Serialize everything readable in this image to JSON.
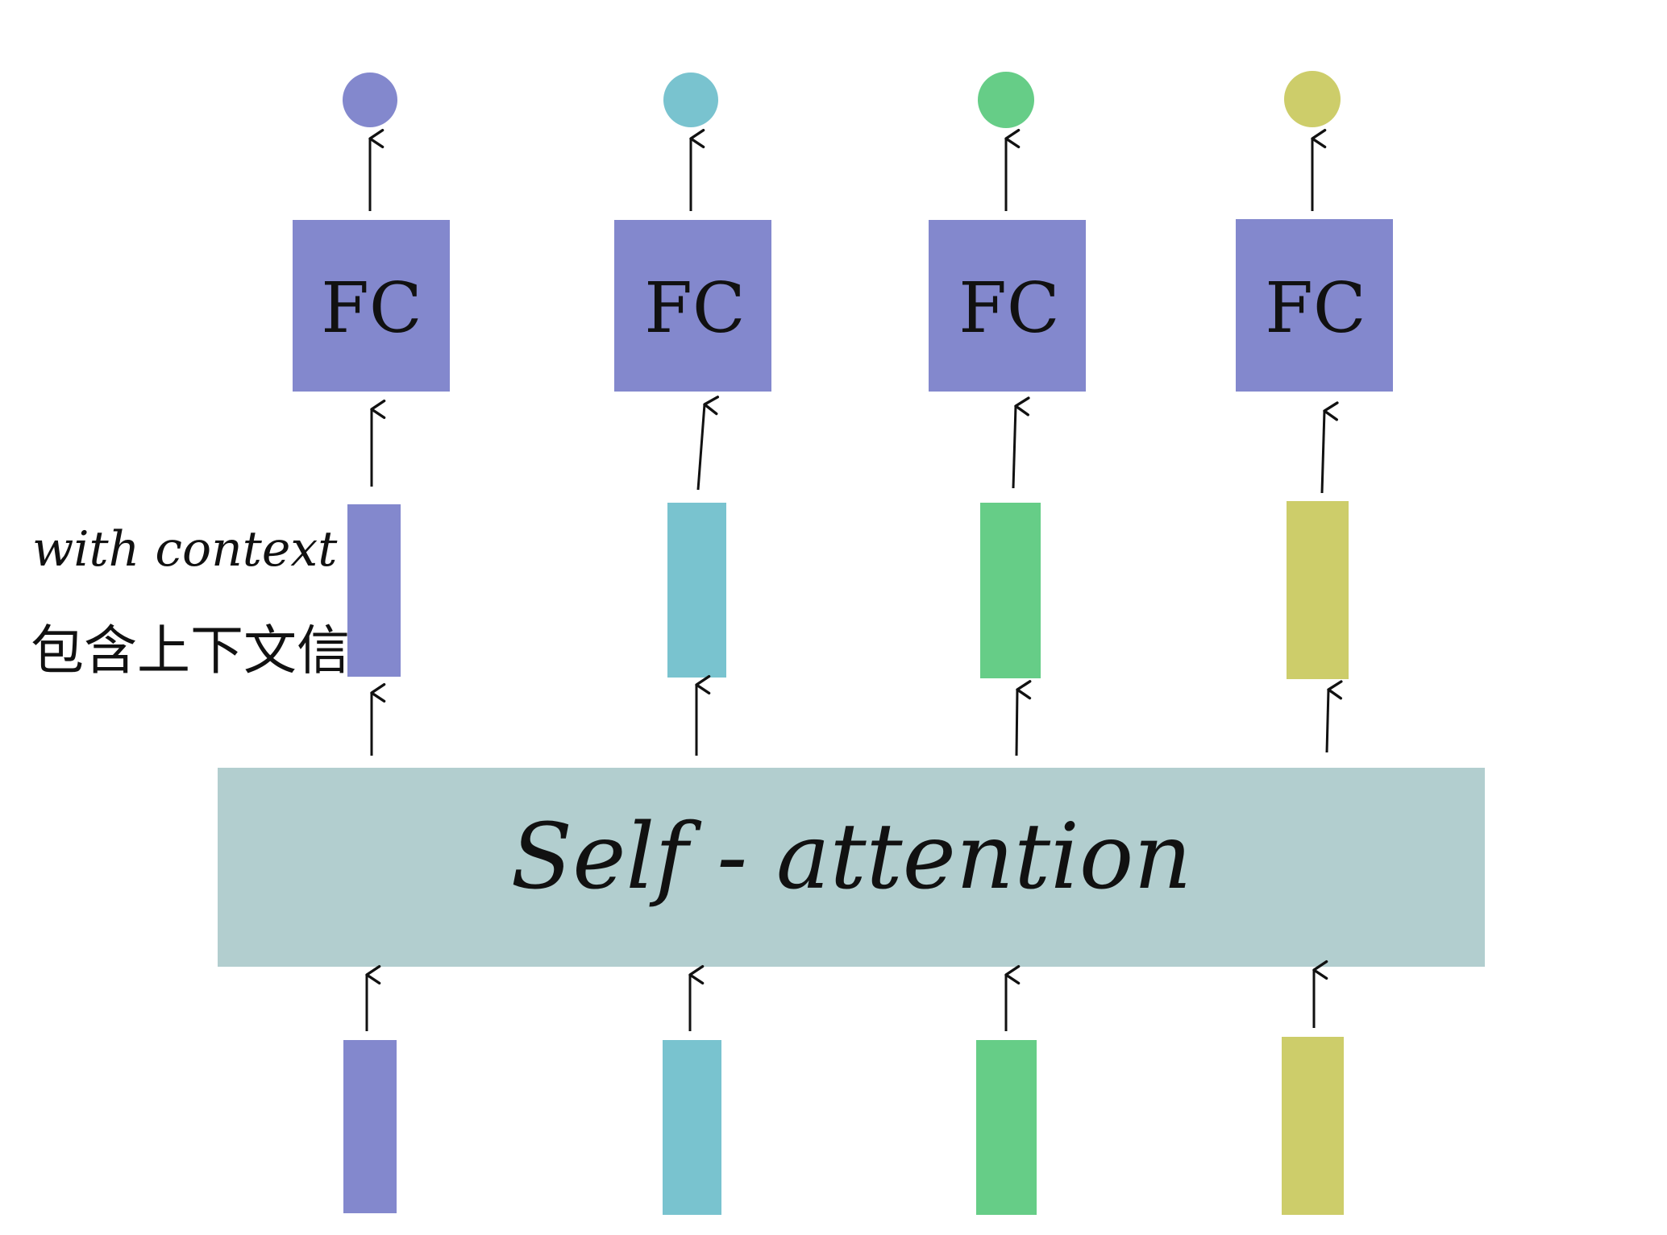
{
  "colors": {
    "purple": "#8388CD",
    "cyan": "#79C3CF",
    "green": "#66CD87",
    "olive": "#CDCD6A",
    "attention_block": "#B2CECF",
    "fc_box": "#8388CD",
    "stroke": "#111111"
  },
  "columns": [
    {
      "id": "c1",
      "color": "purple"
    },
    {
      "id": "c2",
      "color": "cyan"
    },
    {
      "id": "c3",
      "color": "green"
    },
    {
      "id": "c4",
      "color": "olive"
    }
  ],
  "fc_label": "FC",
  "attention_label": "Self - attention",
  "context_label_en": "with context",
  "context_label_zh": "包含上下文信息"
}
